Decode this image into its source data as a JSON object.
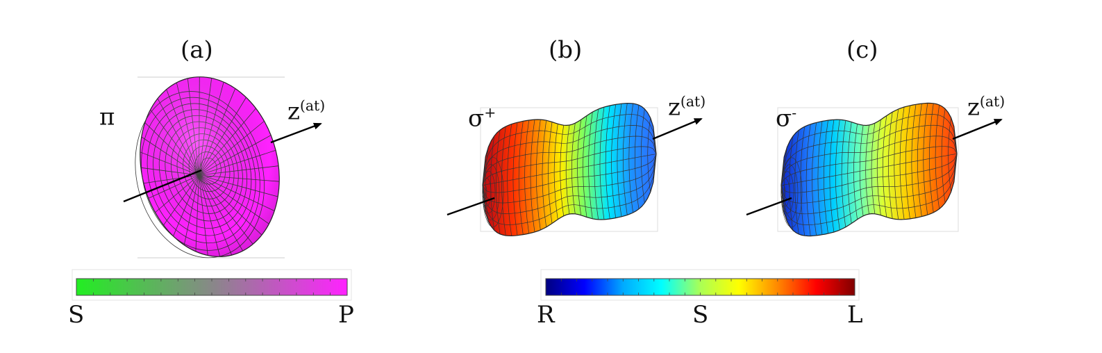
{
  "panels": [
    {
      "id": "a",
      "label": "(a)",
      "polarization": "π",
      "polarization_sup": "",
      "axis_label": "z",
      "axis_sup": "(at)",
      "fill": "#ff22ff"
    },
    {
      "id": "b",
      "label": "(b)",
      "polarization": "σ",
      "polarization_sup": "+",
      "axis_label": "z",
      "axis_sup": "(at)"
    },
    {
      "id": "c",
      "label": "(c)",
      "polarization": "σ",
      "polarization_sup": "-",
      "axis_label": "z",
      "axis_sup": "(at)"
    }
  ],
  "colorbars": [
    {
      "id": "sp",
      "left_label": "S",
      "right_label": "P",
      "colors": [
        "#22ee22",
        "#888888",
        "#ff22ff"
      ]
    },
    {
      "id": "rsl",
      "left_label": "R",
      "middle_label": "S",
      "right_label": "L",
      "colors": [
        "#000080",
        "#0000ff",
        "#00aaff",
        "#00ffff",
        "#aaff55",
        "#ffff00",
        "#ff8800",
        "#ff0000",
        "#800000"
      ]
    }
  ]
}
